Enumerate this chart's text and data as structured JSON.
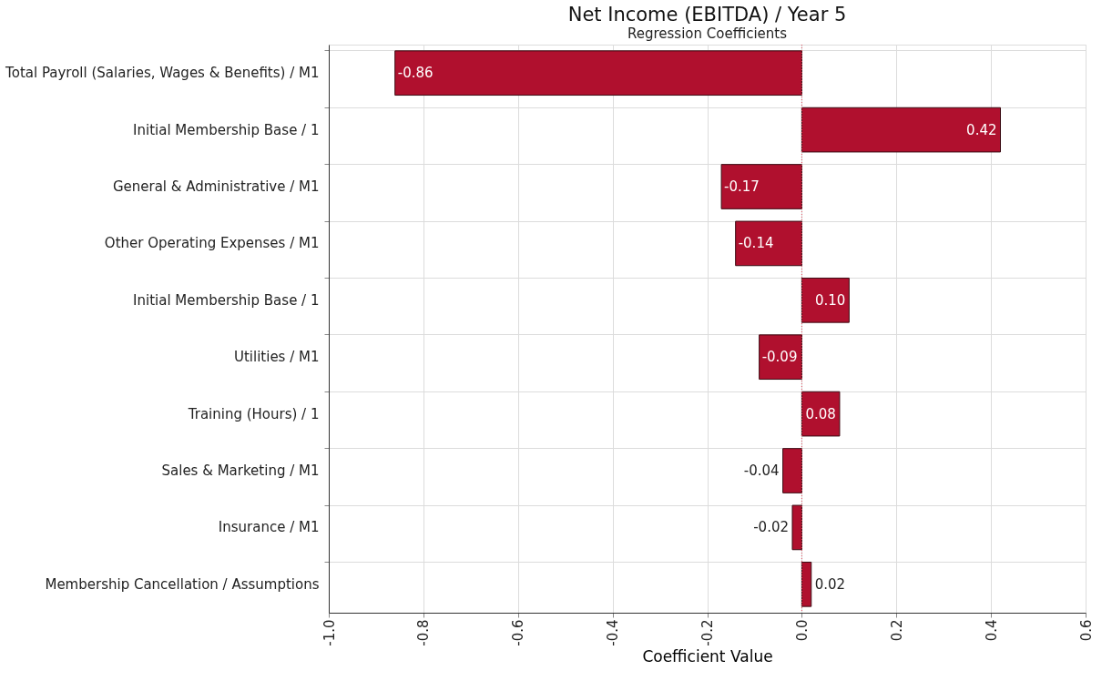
{
  "chart_data": {
    "type": "bar",
    "orientation": "horizontal",
    "title": "Net Income (EBITDA) / Year 5",
    "subtitle": "Regression Coefficients",
    "xlabel": "Coefficient Value",
    "categories": [
      "Total Payroll (Salaries, Wages & Benefits) / M1",
      "Initial Membership Base / 1",
      "General & Administrative / M1",
      "Other Operating Expenses / M1",
      "Initial Membership Base / 1",
      "Utilities / M1",
      "Training (Hours) / 1",
      "Sales & Marketing / M1",
      "Insurance / M1",
      "Membership Cancellation / Assumptions"
    ],
    "values": [
      -0.86,
      0.42,
      -0.17,
      -0.14,
      0.1,
      -0.09,
      0.08,
      -0.04,
      -0.02,
      0.02
    ],
    "value_labels": [
      "-0.86",
      "0.42",
      "-0.17",
      "-0.14",
      "0.10",
      "-0.09",
      "0.08",
      "-0.04",
      "-0.02",
      "0.02"
    ],
    "color": "#b0102e",
    "xlim": [
      -1.0,
      0.6
    ],
    "xticks": [
      {
        "value": -1.0,
        "label": "-1.0"
      },
      {
        "value": -0.8,
        "label": "-0.8"
      },
      {
        "value": -0.6,
        "label": "-0.6"
      },
      {
        "value": -0.4,
        "label": "-0.4"
      },
      {
        "value": -0.2,
        "label": "-0.2"
      },
      {
        "value": 0.0,
        "label": "0.0"
      },
      {
        "value": 0.2,
        "label": "0.2"
      },
      {
        "value": 0.4,
        "label": "0.4"
      },
      {
        "value": 0.6,
        "label": "0.6"
      }
    ],
    "ref_lines": [
      {
        "axis": "x",
        "value": 0.0,
        "color": "#e05060",
        "line_style": "dotted"
      }
    ],
    "grid": true
  }
}
